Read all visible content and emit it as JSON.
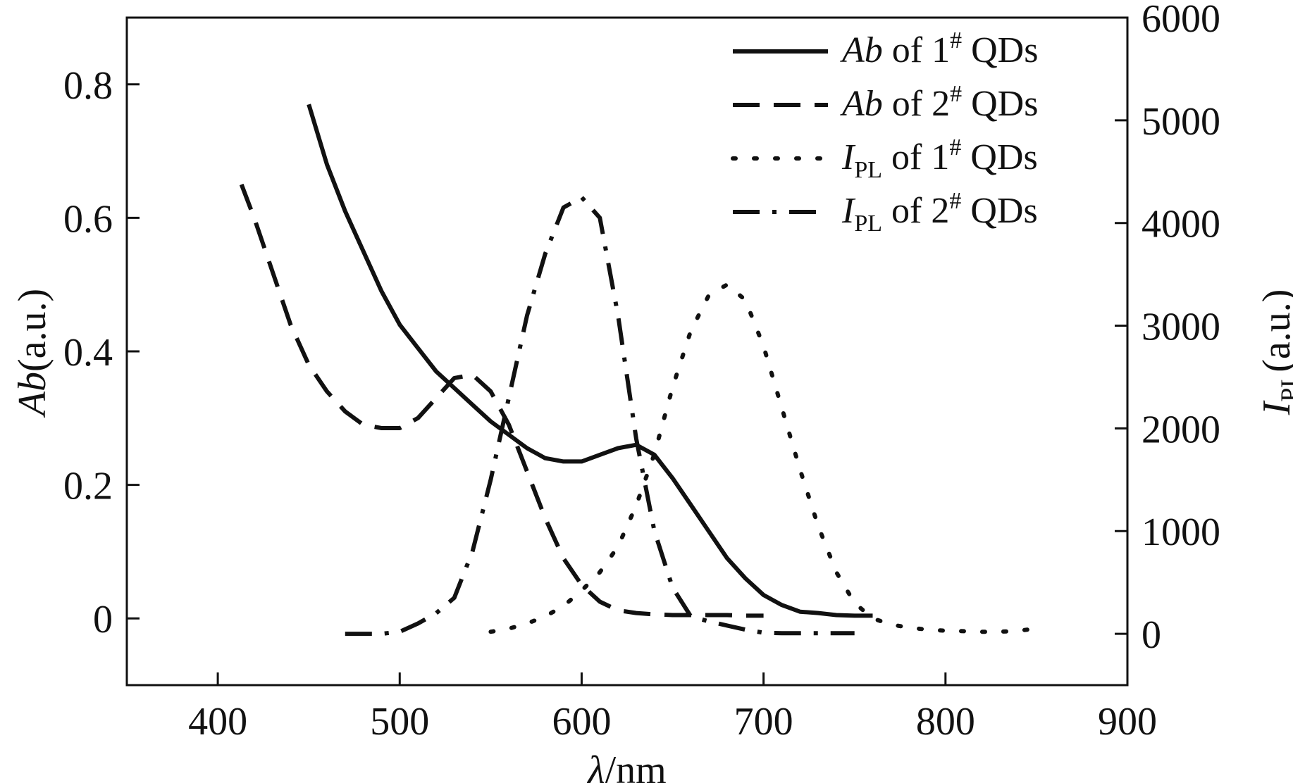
{
  "chart_data": {
    "type": "line",
    "xlabel": {
      "symbol": "λ",
      "unit": "/nm"
    },
    "ylabel_left": {
      "symbol": "Ab",
      "unit": "(a.u.)"
    },
    "ylabel_right": {
      "symbol": "I",
      "sub": "PL",
      "unit": "(a.u.)"
    },
    "xlim": [
      350,
      900
    ],
    "ylim_left": [
      -0.1,
      0.9
    ],
    "ylim_right": [
      -500,
      6000
    ],
    "x_ticks": [
      "400",
      "500",
      "600",
      "700",
      "800",
      "900"
    ],
    "y_left_ticks": [
      "0",
      "0.2",
      "0.4",
      "0.6",
      "0.8"
    ],
    "y_right_ticks": [
      "0",
      "1000",
      "2000",
      "3000",
      "4000",
      "5000",
      "6000"
    ],
    "grid": false,
    "legend_position": "top-right",
    "series": [
      {
        "name": "Ab of 1# QDs",
        "legend": {
          "pre": "Ab",
          "sub": "",
          "mid": " of 1",
          "sup": "#",
          "post": " QDs"
        },
        "axis": "left",
        "style": "solid",
        "x": [
          450,
          460,
          470,
          480,
          490,
          500,
          510,
          520,
          530,
          540,
          550,
          560,
          570,
          580,
          590,
          600,
          610,
          620,
          630,
          640,
          650,
          660,
          670,
          680,
          690,
          700,
          710,
          720,
          730,
          740,
          750,
          760
        ],
        "y": [
          0.77,
          0.68,
          0.61,
          0.55,
          0.49,
          0.44,
          0.405,
          0.37,
          0.345,
          0.32,
          0.295,
          0.275,
          0.255,
          0.24,
          0.235,
          0.235,
          0.245,
          0.255,
          0.26,
          0.245,
          0.21,
          0.17,
          0.13,
          0.09,
          0.06,
          0.035,
          0.02,
          0.01,
          0.008,
          0.005,
          0.004,
          0.004
        ]
      },
      {
        "name": "Ab of 2# QDs",
        "legend": {
          "pre": "Ab",
          "sub": "",
          "mid": " of 2",
          "sup": "#",
          "post": " QDs"
        },
        "axis": "left",
        "style": "dashed",
        "x": [
          413,
          420,
          430,
          440,
          450,
          460,
          470,
          480,
          490,
          500,
          510,
          520,
          530,
          540,
          550,
          560,
          570,
          580,
          590,
          600,
          610,
          620,
          630,
          640,
          650,
          660,
          670,
          680,
          690,
          700
        ],
        "y": [
          0.65,
          0.6,
          0.52,
          0.44,
          0.38,
          0.34,
          0.31,
          0.29,
          0.285,
          0.285,
          0.3,
          0.33,
          0.36,
          0.365,
          0.34,
          0.29,
          0.22,
          0.15,
          0.09,
          0.05,
          0.025,
          0.012,
          0.008,
          0.006,
          0.005,
          0.005,
          0.005,
          0.005,
          0.004,
          0.004
        ]
      },
      {
        "name": "IPL of 1# QDs",
        "legend": {
          "pre": "I",
          "sub": "PL",
          "mid": " of 1",
          "sup": "#",
          "post": " QDs"
        },
        "axis": "right",
        "style": "dotted",
        "x": [
          550,
          560,
          570,
          580,
          590,
          600,
          610,
          620,
          630,
          640,
          650,
          660,
          670,
          680,
          690,
          700,
          710,
          720,
          730,
          740,
          750,
          760,
          770,
          780,
          790,
          800,
          810,
          820,
          830,
          840,
          850
        ],
        "y": [
          20,
          50,
          100,
          170,
          270,
          420,
          600,
          850,
          1250,
          1750,
          2400,
          2950,
          3300,
          3400,
          3250,
          2800,
          2200,
          1600,
          1050,
          600,
          300,
          150,
          90,
          60,
          40,
          30,
          25,
          20,
          20,
          30,
          50
        ]
      },
      {
        "name": "IPL of 2# QDs",
        "legend": {
          "pre": "I",
          "sub": "PL",
          "mid": " of 2",
          "sup": "#",
          "post": " QDs"
        },
        "axis": "right",
        "style": "dashdot",
        "x": [
          470,
          480,
          490,
          500,
          510,
          520,
          530,
          540,
          550,
          560,
          570,
          580,
          590,
          600,
          610,
          620,
          630,
          640,
          650,
          660,
          670,
          680,
          690,
          700,
          710,
          720,
          730,
          740,
          750
        ],
        "y": [
          0,
          0,
          0,
          20,
          100,
          200,
          350,
          800,
          1500,
          2300,
          3100,
          3700,
          4150,
          4250,
          4050,
          3100,
          1900,
          1000,
          450,
          170,
          120,
          80,
          40,
          10,
          5,
          5,
          5,
          5,
          5
        ]
      }
    ]
  }
}
